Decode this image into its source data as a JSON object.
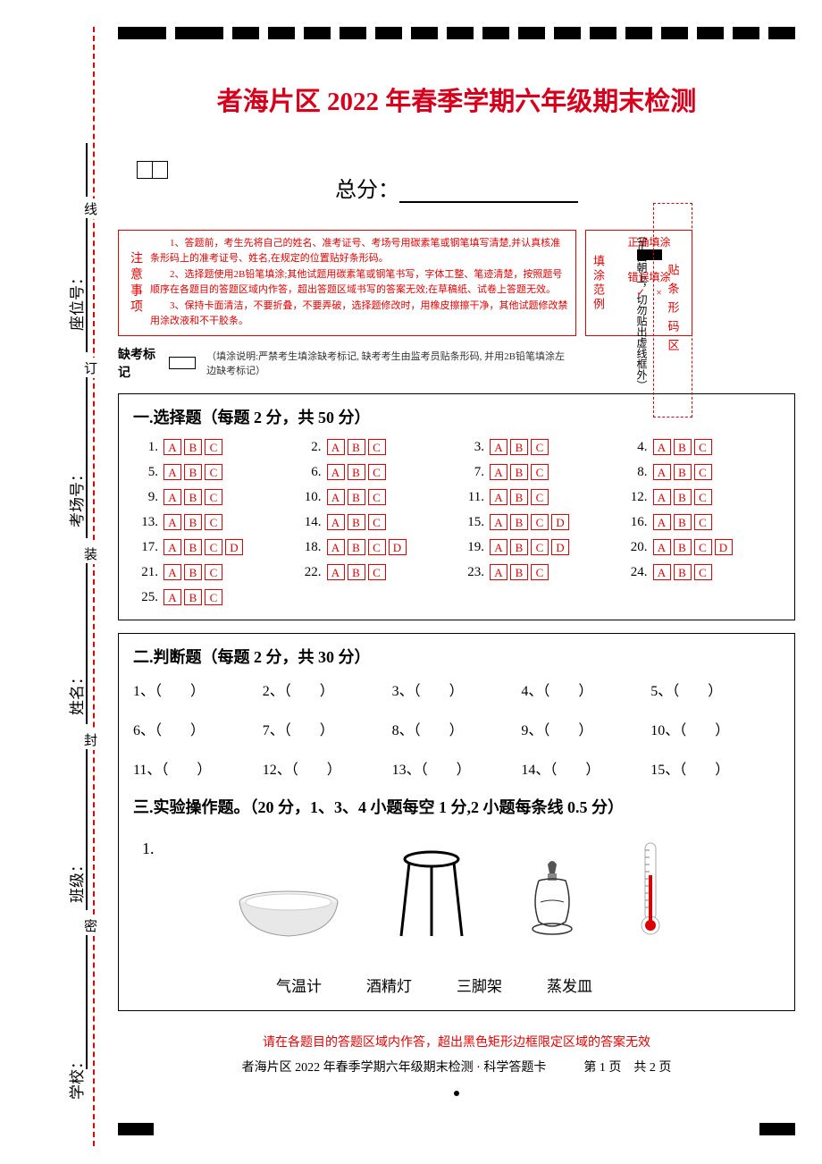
{
  "title": "者海片区 2022 年春季学期六年级期末检测",
  "score_label": "总分：",
  "side_labels": {
    "seat": "座位号：",
    "room": "考场号：",
    "name": "姓名：",
    "class": "班级：",
    "school": "学校："
  },
  "binding_labels": [
    "线",
    "订",
    "装",
    "封",
    "密"
  ],
  "notice": {
    "title": "注意事项",
    "p1": "1、答题前，考生先将自己的姓名、准考证号、考场号用碳素笔或钢笔填写清楚,并认真核准条形码上的准考证号、姓名,在规定的位置贴好条形码。",
    "p2": "2、选择题使用2B铅笔填涂;其他试题用碳素笔或钢笔书写，字体工整、笔迹清楚，按照题号顺序在各题目的答题区域内作答，超出答题区域书写的答案无效;在草稿纸、试卷上答题无效。",
    "p3": "3、保持卡面清洁，不要折叠，不要弄破，选择题修改时，用橡皮擦擦干净，其他试题修改禁用涂改液和不干胶条。"
  },
  "absent": {
    "label": "缺考标记",
    "note": "（填涂说明:严禁考生填涂缺考标记, 缺考考生由监考员贴条形码, 并用2B铅笔填涂左边缺考标记）"
  },
  "fill_example": {
    "title": "填涂范例",
    "correct": "正确填涂",
    "wrong": "错误填涂",
    "wrong_marks": "✓　×"
  },
  "barcode": {
    "text": "贴条形码区",
    "note": "（正面朝上，切勿贴出虚线框外）"
  },
  "sections": {
    "s1": {
      "title": "一.选择题（每题 2 分，共 50 分）",
      "questions": [
        {
          "n": "1.",
          "opts": [
            "A",
            "B",
            "C"
          ]
        },
        {
          "n": "2.",
          "opts": [
            "A",
            "B",
            "C"
          ]
        },
        {
          "n": "3.",
          "opts": [
            "A",
            "B",
            "C"
          ]
        },
        {
          "n": "4.",
          "opts": [
            "A",
            "B",
            "C"
          ]
        },
        {
          "n": "5.",
          "opts": [
            "A",
            "B",
            "C"
          ]
        },
        {
          "n": "6.",
          "opts": [
            "A",
            "B",
            "C"
          ]
        },
        {
          "n": "7.",
          "opts": [
            "A",
            "B",
            "C"
          ]
        },
        {
          "n": "8.",
          "opts": [
            "A",
            "B",
            "C"
          ]
        },
        {
          "n": "9.",
          "opts": [
            "A",
            "B",
            "C"
          ]
        },
        {
          "n": "10.",
          "opts": [
            "A",
            "B",
            "C"
          ]
        },
        {
          "n": "11.",
          "opts": [
            "A",
            "B",
            "C"
          ]
        },
        {
          "n": "12.",
          "opts": [
            "A",
            "B",
            "C"
          ]
        },
        {
          "n": "13.",
          "opts": [
            "A",
            "B",
            "C"
          ]
        },
        {
          "n": "14.",
          "opts": [
            "A",
            "B",
            "C"
          ]
        },
        {
          "n": "15.",
          "opts": [
            "A",
            "B",
            "C",
            "D"
          ]
        },
        {
          "n": "16.",
          "opts": [
            "A",
            "B",
            "C"
          ]
        },
        {
          "n": "17.",
          "opts": [
            "A",
            "B",
            "C",
            "D"
          ]
        },
        {
          "n": "18.",
          "opts": [
            "A",
            "B",
            "C",
            "D"
          ]
        },
        {
          "n": "19.",
          "opts": [
            "A",
            "B",
            "C",
            "D"
          ]
        },
        {
          "n": "20.",
          "opts": [
            "A",
            "B",
            "C",
            "D"
          ]
        },
        {
          "n": "21.",
          "opts": [
            "A",
            "B",
            "C"
          ]
        },
        {
          "n": "22.",
          "opts": [
            "A",
            "B",
            "C"
          ]
        },
        {
          "n": "23.",
          "opts": [
            "A",
            "B",
            "C"
          ]
        },
        {
          "n": "24.",
          "opts": [
            "A",
            "B",
            "C"
          ]
        },
        {
          "n": "25.",
          "opts": [
            "A",
            "B",
            "C"
          ]
        }
      ]
    },
    "s2": {
      "title": "二.判断题（每题 2 分，共 30 分）",
      "count": 15
    },
    "s3": {
      "title": "三.实验操作题。（20 分，1、3、4 小题每空 1 分,2 小题每条线 0.5 分）",
      "q1": "1.",
      "labels": [
        "气温计",
        "酒精灯",
        "三脚架",
        "蒸发皿"
      ]
    }
  },
  "bottom_note": "请在各题目的答题区域内作答，超出黑色矩形边框限定区域的答案无效",
  "footer": {
    "left": "者海片区 2022 年春季学期六年级期末检测 · 科学答题卡",
    "right": "第 1 页　共 2 页"
  },
  "colors": {
    "red": "#e60000",
    "title_red": "#d9001b",
    "black": "#000000"
  }
}
